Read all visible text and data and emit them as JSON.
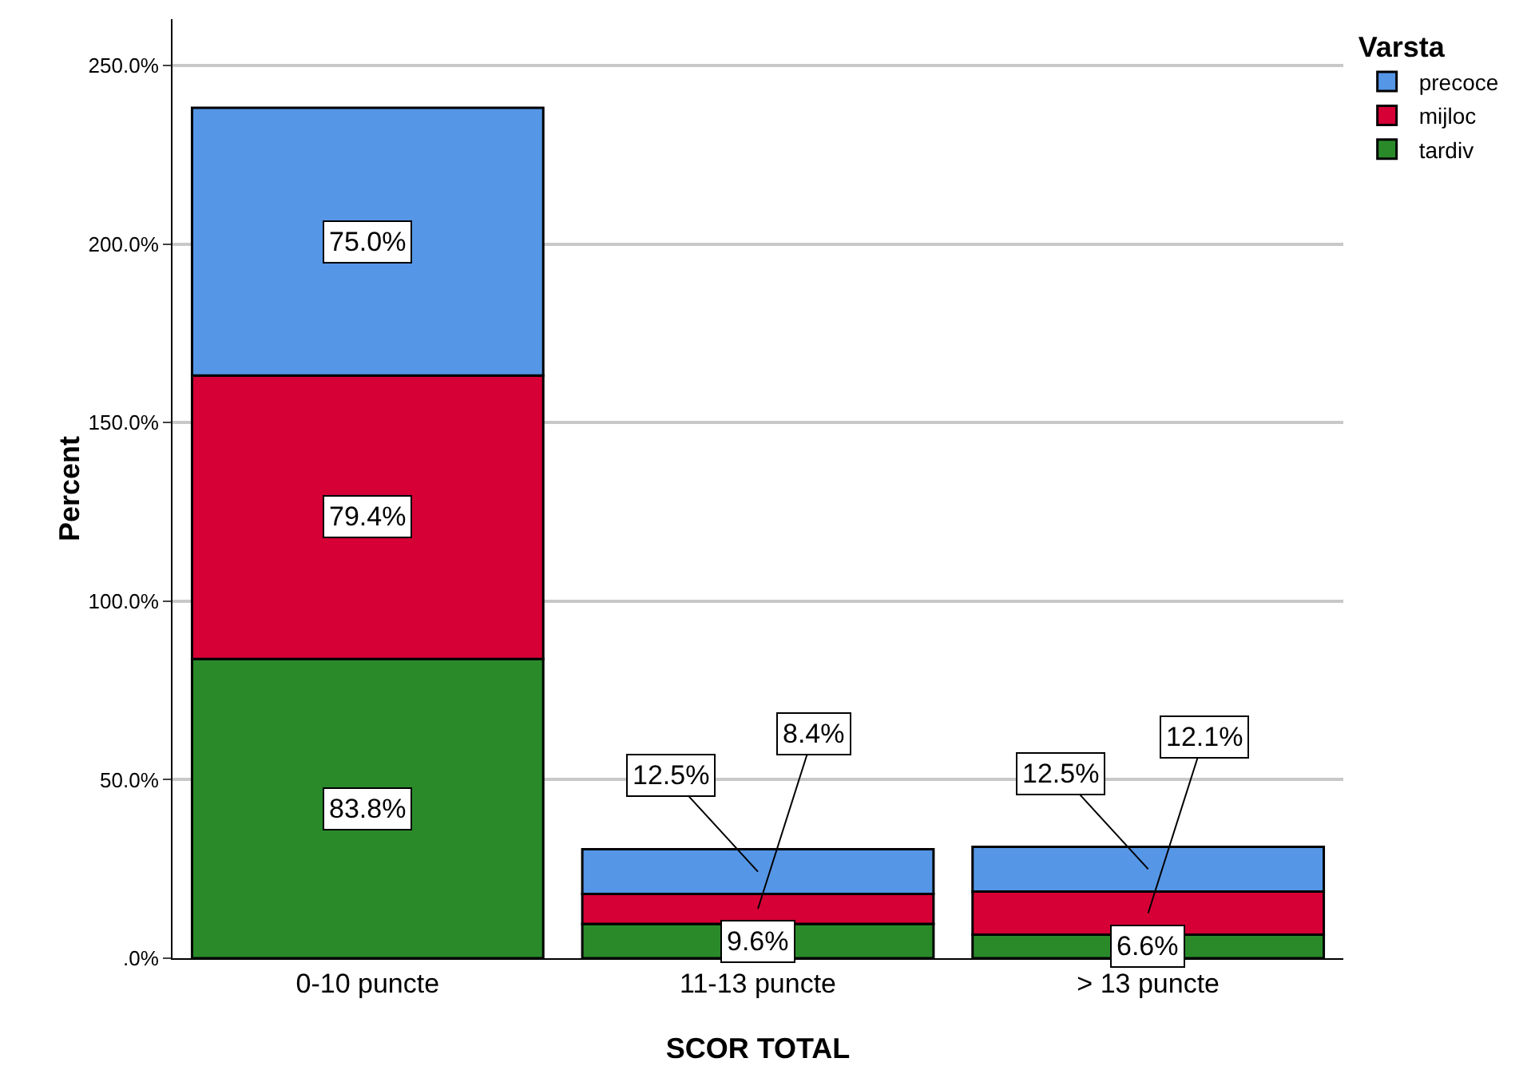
{
  "chart_data": {
    "type": "bar",
    "stacked": true,
    "xlabel": "SCOR TOTAL",
    "ylabel": "Percent",
    "legend_title": "Varsta",
    "legend": "top right",
    "grid": "y",
    "categories": [
      "0-10 puncte",
      "11-13 puncte",
      "> 13 puncte"
    ],
    "ylim": [
      0,
      263
    ],
    "yticks": [
      {
        "value": 0,
        "label": ".0%"
      },
      {
        "value": 50,
        "label": "50.0%"
      },
      {
        "value": 100,
        "label": "100.0%"
      },
      {
        "value": 150,
        "label": "150.0%"
      },
      {
        "value": 200,
        "label": "200.0%"
      },
      {
        "value": 250,
        "label": "250.0%"
      }
    ],
    "series": [
      {
        "name": "tardiv",
        "color": "#2a8a2a",
        "values": [
          83.8,
          9.6,
          6.6
        ],
        "value_labels": [
          "83.8%",
          "9.6%",
          "6.6%"
        ]
      },
      {
        "name": "mijloc",
        "color": "#d60036",
        "values": [
          79.4,
          8.4,
          12.1
        ],
        "value_labels": [
          "79.4%",
          "8.4%",
          "12.1%"
        ]
      },
      {
        "name": "precoce",
        "color": "#5596e6",
        "values": [
          75.0,
          12.5,
          12.5
        ],
        "value_labels": [
          "75.0%",
          "12.5%",
          "12.5%"
        ]
      }
    ]
  }
}
